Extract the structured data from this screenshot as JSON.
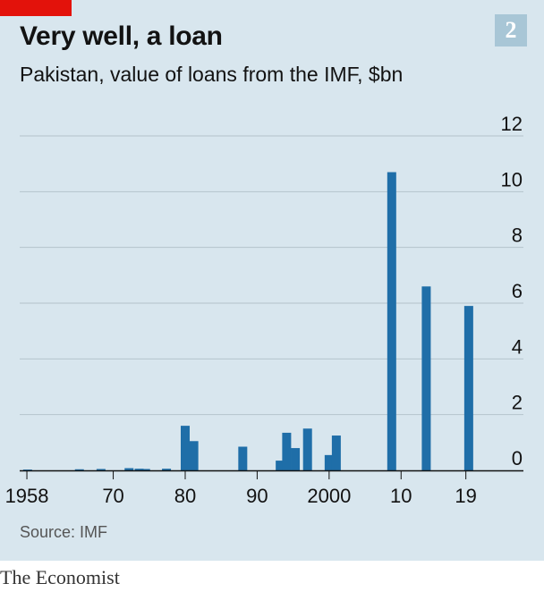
{
  "header": {
    "title": "Very well, a loan",
    "subtitle": "Pakistan, value of loans from the IMF, $bn",
    "badge": "2"
  },
  "footer": {
    "source": "Source: IMF",
    "brand": "The Economist"
  },
  "colors": {
    "background": "#d8e6ee",
    "bar": "#1f6ea8",
    "accent": "#e3120b",
    "badge": "#a8c6d6",
    "grid": "#b5c3cb",
    "axis": "#121212"
  },
  "chart_data": {
    "type": "bar",
    "title": "Very well, a loan",
    "subtitle": "Pakistan, value of loans from the IMF, $bn",
    "xlabel": "",
    "ylabel": "",
    "xlim": [
      1957,
      2027
    ],
    "ylim": [
      0,
      12
    ],
    "y_ticks": [
      0,
      2,
      4,
      6,
      8,
      10,
      12
    ],
    "x_ticks": [
      {
        "year": 1958,
        "label": "1958"
      },
      {
        "year": 1970,
        "label": "70"
      },
      {
        "year": 1980,
        "label": "80"
      },
      {
        "year": 1990,
        "label": "90"
      },
      {
        "year": 2000,
        "label": "2000"
      },
      {
        "year": 2010,
        "label": "10"
      },
      {
        "year": 2019,
        "label": "19"
      }
    ],
    "grid": true,
    "y_axis_position": "right",
    "bars": [
      {
        "year": 1958.1,
        "value": 0.03
      },
      {
        "year": 1965.3,
        "value": 0.04
      },
      {
        "year": 1968.3,
        "value": 0.05
      },
      {
        "year": 1972.2,
        "value": 0.08
      },
      {
        "year": 1973.6,
        "value": 0.06
      },
      {
        "year": 1974.5,
        "value": 0.05
      },
      {
        "year": 1977.4,
        "value": 0.06
      },
      {
        "year": 1980.0,
        "value": 1.6
      },
      {
        "year": 1981.2,
        "value": 1.05
      },
      {
        "year": 1988.0,
        "value": 0.85
      },
      {
        "year": 1993.2,
        "value": 0.35
      },
      {
        "year": 1994.1,
        "value": 1.35
      },
      {
        "year": 1995.3,
        "value": 0.8
      },
      {
        "year": 1997.0,
        "value": 1.5
      },
      {
        "year": 2000.0,
        "value": 0.55
      },
      {
        "year": 2001.0,
        "value": 1.25
      },
      {
        "year": 2008.7,
        "value": 10.7
      },
      {
        "year": 2013.5,
        "value": 6.6
      },
      {
        "year": 2019.4,
        "value": 5.9
      }
    ]
  }
}
